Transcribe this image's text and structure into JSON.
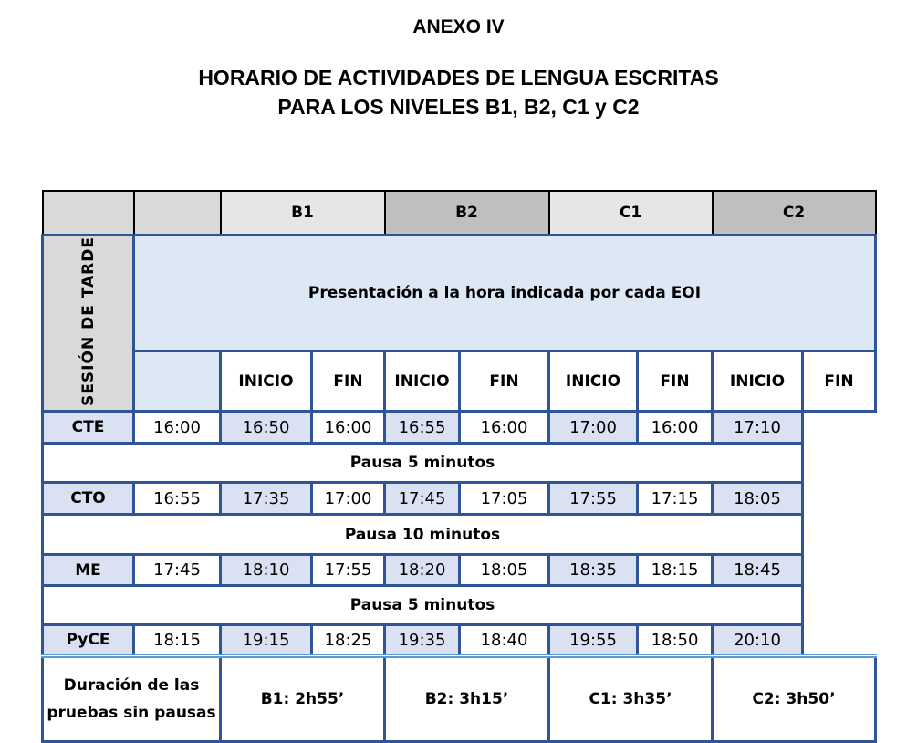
{
  "annex": "ANEXO IV",
  "title_line1": "HORARIO DE ACTIVIDADES DE LENGUA ESCRITAS",
  "title_line2": "PARA LOS NIVELES B1, B2, C1 y C2",
  "side_label": "SESIÓN DE TARDE",
  "levels": [
    "B1",
    "B2",
    "C1",
    "C2"
  ],
  "presentation": "Presentación  a la hora indicada por cada EOI",
  "start_label": "INICIO",
  "end_label": "FIN",
  "rows": [
    {
      "name": "CTE",
      "times": [
        "16:00",
        "16:50",
        "16:00",
        "16:55",
        "16:00",
        "17:00",
        "16:00",
        "17:10"
      ],
      "pause_after": "Pausa 5 minutos"
    },
    {
      "name": "CTO",
      "times": [
        "16:55",
        "17:35",
        "17:00",
        "17:45",
        "17:05",
        "17:55",
        "17:15",
        "18:05"
      ],
      "pause_after": "Pausa 10 minutos"
    },
    {
      "name": "ME",
      "times": [
        "17:45",
        "18:10",
        "17:55",
        "18:20",
        "18:05",
        "18:35",
        "18:15",
        "18:45"
      ],
      "pause_after": "Pausa 5 minutos"
    },
    {
      "name": "PyCE",
      "times": [
        "18:15",
        "19:15",
        "18:25",
        "19:35",
        "18:40",
        "19:55",
        "18:50",
        "20:10"
      ]
    }
  ],
  "duration_label": "Duración de las pruebas sin pausas",
  "durations": [
    "B1:  2h55’",
    "B2:  3h15’",
    "C1:  3h35’",
    "C2:  3h50’"
  ],
  "colors": {
    "border": "#2f5597",
    "light_blue": "#dde8f5",
    "fin_cell": "#d9e1f2",
    "gray": "#d9d9d9"
  }
}
